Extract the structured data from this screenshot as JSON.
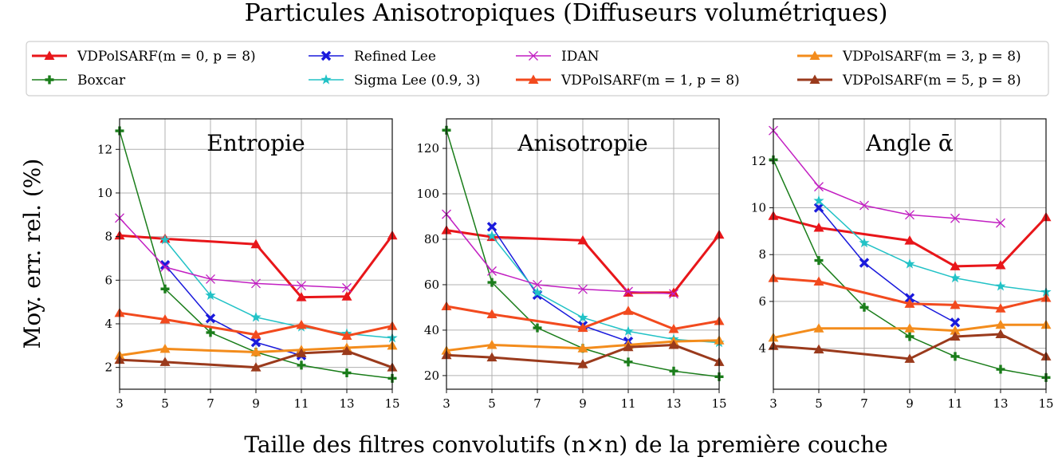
{
  "title": "Particules Anisotropiques (Diffuseurs volumétriques)",
  "xlabel": "Taille des filtres convolutifs (n×n) de la première couche",
  "ylabel": "Moy. err. rel. (%)",
  "legend": {
    "position": "top",
    "columns": 4,
    "entries": [
      {
        "label": "VDPolSARF(m = 0, p = 8)",
        "color": "#e8161a",
        "marker": "triangle"
      },
      {
        "label": "Boxcar",
        "color": "#1a7d1a",
        "marker": "plus"
      },
      {
        "label": "Refined Lee",
        "color": "#1a1adc",
        "marker": "x-bold"
      },
      {
        "label": "Sigma Lee (0.9, 3)",
        "color": "#22c2c6",
        "marker": "star"
      },
      {
        "label": "IDAN",
        "color": "#c21fc2",
        "marker": "x-thin"
      },
      {
        "label": "VDPolSARF(m = 1, p = 8)",
        "color": "#f24a1e",
        "marker": "triangle"
      },
      {
        "label": "VDPolSARF(m = 3, p = 8)",
        "color": "#f38c1c",
        "marker": "triangle"
      },
      {
        "label": "VDPolSARF(m = 5, p = 8)",
        "color": "#9a3a1c",
        "marker": "triangle"
      }
    ]
  },
  "chart_data": [
    {
      "type": "line",
      "title": "Entropie",
      "x": [
        3,
        5,
        7,
        9,
        11,
        13,
        15
      ],
      "xlim": [
        3,
        15
      ],
      "ylim": [
        1,
        13.4
      ],
      "yticks": [
        2,
        4,
        6,
        8,
        10,
        12
      ],
      "grid": true,
      "series": [
        {
          "name": "VDPolSARF(m = 0, p = 8)",
          "x": [
            3,
            5,
            9,
            11,
            13,
            15
          ],
          "values": [
            8.05,
            7.9,
            7.65,
            5.22,
            5.25,
            8.05
          ]
        },
        {
          "name": "Boxcar",
          "x": [
            3,
            5,
            7,
            9,
            11,
            13,
            15
          ],
          "values": [
            12.85,
            5.6,
            3.6,
            2.7,
            2.1,
            1.75,
            1.5
          ]
        },
        {
          "name": "Refined Lee",
          "x": [
            5,
            7,
            9,
            11
          ],
          "values": [
            6.7,
            4.25,
            3.15,
            2.55
          ]
        },
        {
          "name": "Sigma Lee (0.9, 3)",
          "x": [
            5,
            7,
            9,
            11,
            13,
            15
          ],
          "values": [
            7.85,
            5.3,
            4.3,
            3.85,
            3.55,
            3.35
          ]
        },
        {
          "name": "IDAN",
          "x": [
            3,
            5,
            7,
            9,
            11,
            13
          ],
          "values": [
            8.85,
            6.6,
            6.05,
            5.85,
            5.75,
            5.65
          ]
        },
        {
          "name": "VDPolSARF(m = 1, p = 8)",
          "x": [
            3,
            5,
            9,
            11,
            13,
            15
          ],
          "values": [
            4.5,
            4.2,
            3.5,
            3.95,
            3.45,
            3.9
          ]
        },
        {
          "name": "VDPolSARF(m = 3, p = 8)",
          "x": [
            3,
            5,
            9,
            11,
            13,
            15
          ],
          "values": [
            2.55,
            2.85,
            2.7,
            2.8,
            2.9,
            3.0
          ]
        },
        {
          "name": "VDPolSARF(m = 5, p = 8)",
          "x": [
            3,
            5,
            9,
            11,
            13,
            15
          ],
          "values": [
            2.35,
            2.25,
            2.0,
            2.65,
            2.75,
            2.0
          ]
        }
      ]
    },
    {
      "type": "line",
      "title": "Anisotropie",
      "x": [
        3,
        5,
        7,
        9,
        11,
        13,
        15
      ],
      "xlim": [
        3,
        15
      ],
      "ylim": [
        14,
        133
      ],
      "yticks": [
        20,
        40,
        60,
        80,
        100,
        120
      ],
      "grid": true,
      "series": [
        {
          "name": "VDPolSARF(m = 0, p = 8)",
          "x": [
            3,
            5,
            9,
            11,
            13,
            15
          ],
          "values": [
            84,
            81,
            79.5,
            56.5,
            56.5,
            82
          ]
        },
        {
          "name": "Boxcar",
          "x": [
            3,
            5,
            7,
            9,
            11,
            13,
            15
          ],
          "values": [
            128,
            61,
            41,
            32,
            26,
            22,
            19.5
          ]
        },
        {
          "name": "Refined Lee",
          "x": [
            5,
            7,
            9,
            11
          ],
          "values": [
            85.5,
            55.5,
            42,
            35
          ]
        },
        {
          "name": "Sigma Lee (0.9, 3)",
          "x": [
            5,
            7,
            9,
            11,
            13,
            15
          ],
          "values": [
            81.5,
            56.5,
            45.5,
            39.5,
            36,
            34.5
          ]
        },
        {
          "name": "IDAN",
          "x": [
            3,
            5,
            7,
            9,
            11,
            13
          ],
          "values": [
            91,
            66,
            60,
            58,
            57,
            56
          ]
        },
        {
          "name": "VDPolSARF(m = 1, p = 8)",
          "x": [
            3,
            5,
            9,
            11,
            13,
            15
          ],
          "values": [
            50.5,
            47,
            41,
            48.5,
            40.5,
            44
          ]
        },
        {
          "name": "VDPolSARF(m = 3, p = 8)",
          "x": [
            3,
            5,
            9,
            11,
            13,
            15
          ],
          "values": [
            31,
            33.5,
            32,
            33.5,
            35,
            35.5
          ]
        },
        {
          "name": "VDPolSARF(m = 5, p = 8)",
          "x": [
            3,
            5,
            9,
            11,
            13,
            15
          ],
          "values": [
            29,
            28,
            25,
            32.5,
            33.5,
            26
          ]
        }
      ]
    },
    {
      "type": "line",
      "title": "Angle ᾱ",
      "x": [
        3,
        5,
        7,
        9,
        11,
        13,
        15
      ],
      "xlim": [
        3,
        15
      ],
      "ylim": [
        2.25,
        13.8
      ],
      "yticks": [
        4,
        6,
        8,
        10,
        12
      ],
      "grid": true,
      "series": [
        {
          "name": "VDPolSARF(m = 0, p = 8)",
          "x": [
            3,
            5,
            9,
            11,
            13,
            15
          ],
          "values": [
            9.65,
            9.15,
            8.6,
            7.5,
            7.55,
            9.6
          ]
        },
        {
          "name": "Boxcar",
          "x": [
            3,
            5,
            7,
            9,
            11,
            13,
            15
          ],
          "values": [
            12.05,
            7.75,
            5.75,
            4.5,
            3.65,
            3.1,
            2.75
          ]
        },
        {
          "name": "Refined Lee",
          "x": [
            5,
            7,
            9,
            11
          ],
          "values": [
            10.0,
            7.65,
            6.15,
            5.1
          ]
        },
        {
          "name": "Sigma Lee (0.9, 3)",
          "x": [
            5,
            7,
            9,
            11,
            13,
            15
          ],
          "values": [
            10.3,
            8.5,
            7.6,
            7.0,
            6.65,
            6.4
          ]
        },
        {
          "name": "IDAN",
          "x": [
            3,
            5,
            7,
            9,
            11,
            13
          ],
          "values": [
            13.3,
            10.9,
            10.1,
            9.7,
            9.55,
            9.35
          ]
        },
        {
          "name": "VDPolSARF(m = 1, p = 8)",
          "x": [
            3,
            5,
            9,
            11,
            13,
            15
          ],
          "values": [
            7.0,
            6.85,
            5.9,
            5.85,
            5.7,
            6.15
          ]
        },
        {
          "name": "VDPolSARF(m = 3, p = 8)",
          "x": [
            3,
            5,
            9,
            11,
            13,
            15
          ],
          "values": [
            4.45,
            4.85,
            4.85,
            4.75,
            5.0,
            5.0
          ]
        },
        {
          "name": "VDPolSARF(m = 5, p = 8)",
          "x": [
            3,
            5,
            9,
            11,
            13,
            15
          ],
          "values": [
            4.1,
            3.95,
            3.55,
            4.5,
            4.6,
            3.65
          ]
        }
      ]
    }
  ]
}
